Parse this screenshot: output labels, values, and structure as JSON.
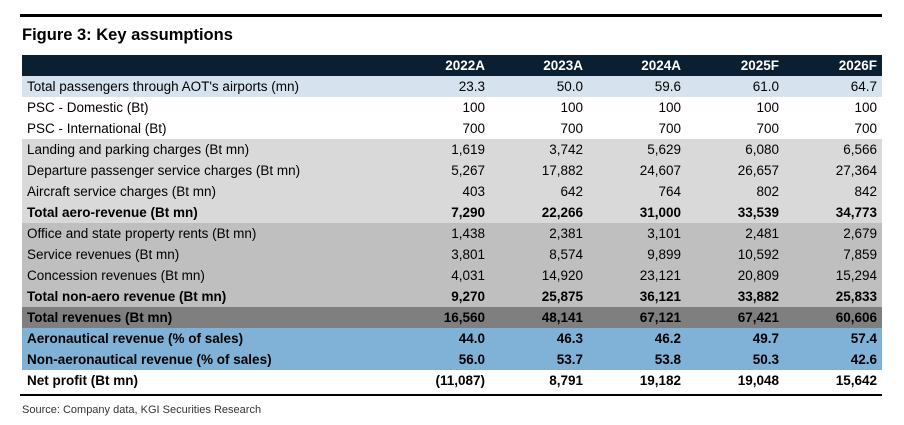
{
  "figure_title": "Figure 3: Key assumptions",
  "source": "Source: Company data, KGI Securities Research",
  "chart_data": {
    "type": "table",
    "title": "Figure 3: Key assumptions",
    "columns": [
      "2022A",
      "2023A",
      "2024A",
      "2025F",
      "2026F"
    ],
    "rows": [
      {
        "label": "Total passengers through AOT's airports (mn)",
        "values": [
          "23.3",
          "50.0",
          "59.6",
          "61.0",
          "64.7"
        ],
        "style": "bg-light"
      },
      {
        "label": "PSC - Domestic (Bt)",
        "values": [
          "100",
          "100",
          "100",
          "100",
          "100"
        ],
        "style": "bg-white"
      },
      {
        "label": "PSC - International (Bt)",
        "values": [
          "700",
          "700",
          "700",
          "700",
          "700"
        ],
        "style": "bg-white"
      },
      {
        "label": "Landing and parking charges (Bt mn)",
        "values": [
          "1,619",
          "3,742",
          "5,629",
          "6,080",
          "6,566"
        ],
        "style": "bg-grey1"
      },
      {
        "label": "Departure passenger service charges (Bt mn)",
        "values": [
          "5,267",
          "17,882",
          "24,607",
          "26,657",
          "27,364"
        ],
        "style": "bg-grey1"
      },
      {
        "label": "Aircraft service charges (Bt mn)",
        "values": [
          "403",
          "642",
          "764",
          "802",
          "842"
        ],
        "style": "bg-grey1"
      },
      {
        "label": "Total aero-revenue (Bt mn)",
        "values": [
          "7,290",
          "22,266",
          "31,000",
          "33,539",
          "34,773"
        ],
        "style": "bg-grey1 bold"
      },
      {
        "label": "Office and state property rents (Bt mn)",
        "values": [
          "1,438",
          "2,381",
          "3,101",
          "2,481",
          "2,679"
        ],
        "style": "bg-grey2"
      },
      {
        "label": "Service revenues (Bt mn)",
        "values": [
          "3,801",
          "8,574",
          "9,899",
          "10,592",
          "7,859"
        ],
        "style": "bg-grey2"
      },
      {
        "label": "Concession revenues (Bt mn)",
        "values": [
          "4,031",
          "14,920",
          "23,121",
          "20,809",
          "15,294"
        ],
        "style": "bg-grey2"
      },
      {
        "label": "Total non-aero revenue (Bt mn)",
        "values": [
          "9,270",
          "25,875",
          "36,121",
          "33,882",
          "25,833"
        ],
        "style": "bg-grey2 bold"
      },
      {
        "label": "Total revenues (Bt mn)",
        "values": [
          "16,560",
          "48,141",
          "67,121",
          "67,421",
          "60,606"
        ],
        "style": "bg-grey3 bold"
      },
      {
        "label": "Aeronautical revenue (% of sales)",
        "values": [
          "44.0",
          "46.3",
          "46.2",
          "49.7",
          "57.4"
        ],
        "style": "bg-blue bold"
      },
      {
        "label": "Non-aeronautical revenue (% of sales)",
        "values": [
          "56.0",
          "53.7",
          "53.8",
          "50.3",
          "42.6"
        ],
        "style": "bg-blue bold"
      },
      {
        "label": "Net profit (Bt mn)",
        "values": [
          "(11,087)",
          "8,791",
          "19,182",
          "19,048",
          "15,642"
        ],
        "style": "bg-white bold"
      }
    ]
  }
}
